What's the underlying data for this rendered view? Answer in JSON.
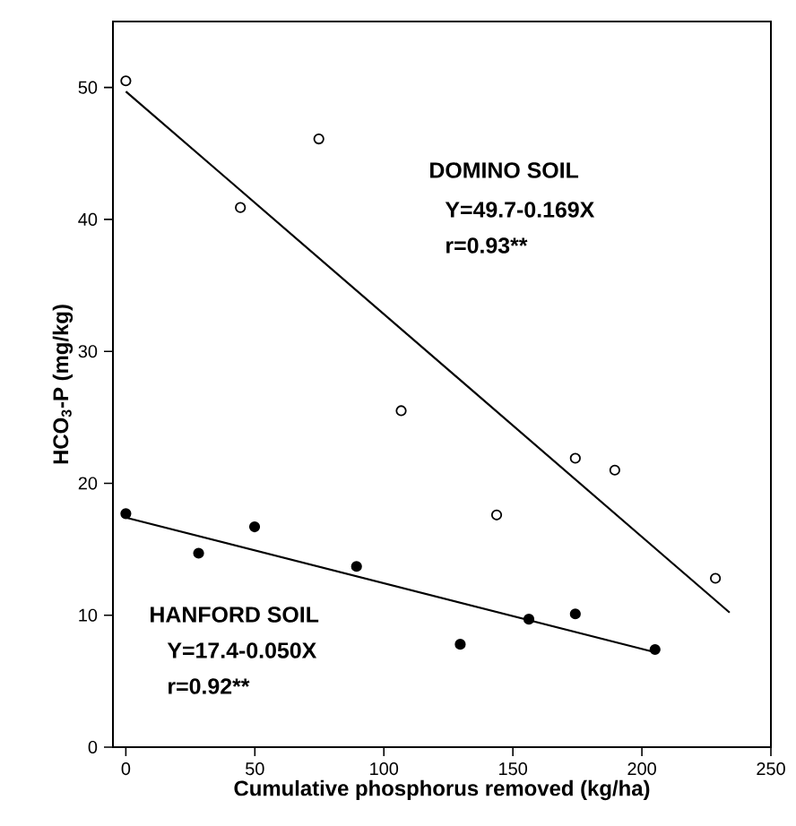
{
  "chart_data": {
    "type": "scatter",
    "xlabel": "Cumulative phosphorus removed (kg/ha)",
    "ylabel": "HCO$_{3}$-P (mg/kg)",
    "xlim": [
      -5,
      250
    ],
    "ylim": [
      0,
      55
    ],
    "xticks": [
      0,
      50,
      100,
      150,
      200,
      250
    ],
    "yticks": [
      0,
      10,
      20,
      30,
      40,
      50
    ],
    "grid": false,
    "series": [
      {
        "color": "#ffffff",
        "marker": "circle",
        "x": [
          0,
          44.4,
          74.8,
          106.7,
          143.7,
          174.2,
          189.5,
          228.5
        ],
        "values": [
          50.5,
          40.9,
          46.1,
          25.5,
          17.6,
          21.9,
          21.0,
          12.8
        ]
      },
      {
        "color": "#000000",
        "marker": "circle",
        "x": [
          0,
          28.2,
          49.9,
          89.4,
          129.6,
          156.2,
          174.2,
          205.1
        ],
        "values": [
          17.7,
          14.7,
          16.7,
          13.7,
          7.8,
          9.7,
          10.1,
          7.4
        ]
      },
      {
        "type": "line",
        "color": "#000000",
        "marker": "none",
        "x": [
          0,
          234
        ],
        "values": [
          49.7,
          10.2
        ]
      },
      {
        "type": "line",
        "color": "#000000",
        "marker": "none",
        "x": [
          0,
          205
        ],
        "values": [
          17.4,
          7.2
        ]
      }
    ],
    "annotations": [
      "DOMINO SOIL",
      "Y=49.7-0.169X",
      "r=0.93**",
      "HANFORD SOIL",
      "Y=17.4-0.050X",
      "r=0.92**"
    ]
  }
}
